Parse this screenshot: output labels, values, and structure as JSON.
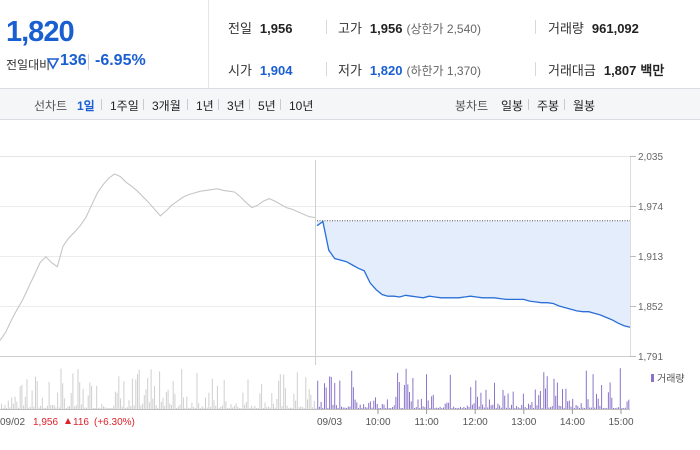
{
  "header": {
    "current_price": "1,820",
    "change_label": "전일대비",
    "change_value": "136",
    "change_pct": "-6.95%",
    "down_color": "#1a5fd1",
    "up_color": "#e0212b"
  },
  "stats": {
    "prev_close": {
      "label": "전일",
      "value": "1,956"
    },
    "high": {
      "label": "고가",
      "value": "1,956",
      "sub": "(상한가 2,540)"
    },
    "volume": {
      "label": "거래량",
      "value": "961,092"
    },
    "open": {
      "label": "시가",
      "value": "1,904"
    },
    "low": {
      "label": "저가",
      "value": "1,820",
      "sub": "(하한가 1,370)"
    },
    "trade_amount": {
      "label": "거래대금",
      "value": "1,807",
      "unit": "백만"
    }
  },
  "tabs": {
    "line_chart_label": "선차트",
    "periods": [
      "1일",
      "1주일",
      "3개월",
      "1년",
      "3년",
      "5년",
      "10년"
    ],
    "active_period": "1일",
    "candle_label": "봉차트",
    "candles": [
      "일봉",
      "주봉",
      "월봉"
    ]
  },
  "chart_data": {
    "type": "line",
    "y_ticks": [
      "2,035",
      "1,974",
      "1,913",
      "1,852",
      "1,791"
    ],
    "ylim": [
      1791,
      2035
    ],
    "grid": true,
    "prev_close": 1956,
    "legend": "거래량",
    "prev_day": {
      "date": "09/02",
      "close": "1,956",
      "change": "116",
      "change_pct": "(+6.30%)",
      "series": [
        1810,
        1820,
        1835,
        1848,
        1860,
        1875,
        1890,
        1905,
        1912,
        1905,
        1900,
        1925,
        1935,
        1942,
        1950,
        1960,
        1975,
        1990,
        2000,
        2008,
        2013,
        2010,
        2003,
        1998,
        1992,
        1985,
        1978,
        1970,
        1962,
        1968,
        1975,
        1980,
        1985,
        1988,
        1990,
        1992,
        1993,
        1994,
        1995,
        1993,
        1992,
        1991,
        1985,
        1978,
        1972,
        1975,
        1980,
        1983,
        1980,
        1976,
        1972,
        1970,
        1967,
        1964,
        1961,
        1960
      ]
    },
    "today": {
      "date": "09/03",
      "times": [
        "10:00",
        "11:00",
        "12:00",
        "13:00",
        "14:00",
        "15:00"
      ],
      "series": [
        1950,
        1955,
        1920,
        1910,
        1908,
        1906,
        1902,
        1898,
        1895,
        1880,
        1872,
        1866,
        1864,
        1864,
        1863,
        1865,
        1864,
        1863,
        1862,
        1864,
        1863,
        1862,
        1862,
        1862,
        1862,
        1863,
        1864,
        1863,
        1862,
        1862,
        1862,
        1861,
        1860,
        1860,
        1860,
        1860,
        1858,
        1857,
        1856,
        1856,
        1855,
        1852,
        1850,
        1848,
        1846,
        1845,
        1845,
        1843,
        1841,
        1838,
        1835,
        1831,
        1828,
        1826
      ]
    }
  }
}
